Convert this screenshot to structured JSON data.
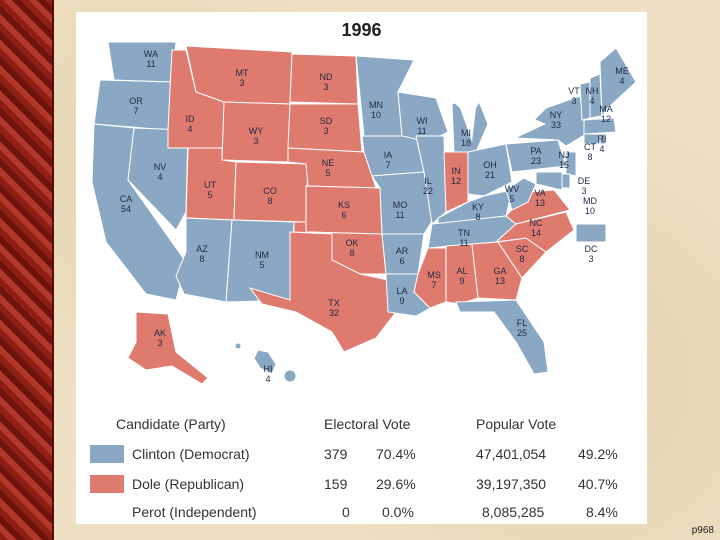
{
  "page_number": "p968",
  "map": {
    "title": "1996",
    "colors": {
      "democrat": "#8aa7c4",
      "republican": "#df7a6e"
    },
    "states": [
      {
        "abbr": "WA",
        "votes": "11",
        "party": "dem"
      },
      {
        "abbr": "OR",
        "votes": "7",
        "party": "dem"
      },
      {
        "abbr": "CA",
        "votes": "54",
        "party": "dem"
      },
      {
        "abbr": "NV",
        "votes": "4",
        "party": "dem"
      },
      {
        "abbr": "ID",
        "votes": "4",
        "party": "rep"
      },
      {
        "abbr": "MT",
        "votes": "3",
        "party": "rep"
      },
      {
        "abbr": "WY",
        "votes": "3",
        "party": "rep"
      },
      {
        "abbr": "UT",
        "votes": "5",
        "party": "rep"
      },
      {
        "abbr": "CO",
        "votes": "8",
        "party": "rep"
      },
      {
        "abbr": "AZ",
        "votes": "8",
        "party": "dem"
      },
      {
        "abbr": "NM",
        "votes": "5",
        "party": "dem"
      },
      {
        "abbr": "ND",
        "votes": "3",
        "party": "rep"
      },
      {
        "abbr": "SD",
        "votes": "3",
        "party": "rep"
      },
      {
        "abbr": "NE",
        "votes": "5",
        "party": "rep"
      },
      {
        "abbr": "KS",
        "votes": "6",
        "party": "rep"
      },
      {
        "abbr": "OK",
        "votes": "8",
        "party": "rep"
      },
      {
        "abbr": "TX",
        "votes": "32",
        "party": "rep"
      },
      {
        "abbr": "MN",
        "votes": "10",
        "party": "dem"
      },
      {
        "abbr": "IA",
        "votes": "7",
        "party": "dem"
      },
      {
        "abbr": "MO",
        "votes": "11",
        "party": "dem"
      },
      {
        "abbr": "AR",
        "votes": "6",
        "party": "dem"
      },
      {
        "abbr": "LA",
        "votes": "9",
        "party": "dem"
      },
      {
        "abbr": "WI",
        "votes": "11",
        "party": "dem"
      },
      {
        "abbr": "IL",
        "votes": "22",
        "party": "dem"
      },
      {
        "abbr": "MI",
        "votes": "18",
        "party": "dem"
      },
      {
        "abbr": "IN",
        "votes": "12",
        "party": "rep"
      },
      {
        "abbr": "OH",
        "votes": "21",
        "party": "dem"
      },
      {
        "abbr": "KY",
        "votes": "8",
        "party": "dem"
      },
      {
        "abbr": "TN",
        "votes": "11",
        "party": "dem"
      },
      {
        "abbr": "MS",
        "votes": "7",
        "party": "rep"
      },
      {
        "abbr": "AL",
        "votes": "9",
        "party": "rep"
      },
      {
        "abbr": "GA",
        "votes": "13",
        "party": "rep"
      },
      {
        "abbr": "FL",
        "votes": "25",
        "party": "dem"
      },
      {
        "abbr": "SC",
        "votes": "8",
        "party": "rep"
      },
      {
        "abbr": "NC",
        "votes": "14",
        "party": "rep"
      },
      {
        "abbr": "VA",
        "votes": "13",
        "party": "rep"
      },
      {
        "abbr": "WV",
        "votes": "5",
        "party": "dem"
      },
      {
        "abbr": "PA",
        "votes": "23",
        "party": "dem"
      },
      {
        "abbr": "NY",
        "votes": "33",
        "party": "dem"
      },
      {
        "abbr": "NJ",
        "votes": "15",
        "party": "dem"
      },
      {
        "abbr": "DE",
        "votes": "3",
        "party": "dem"
      },
      {
        "abbr": "MD",
        "votes": "10",
        "party": "dem"
      },
      {
        "abbr": "DC",
        "votes": "3",
        "party": "dem"
      },
      {
        "abbr": "CT",
        "votes": "8",
        "party": "dem"
      },
      {
        "abbr": "RI",
        "votes": "4",
        "party": "dem"
      },
      {
        "abbr": "MA",
        "votes": "12",
        "party": "dem"
      },
      {
        "abbr": "VT",
        "votes": "3",
        "party": "dem"
      },
      {
        "abbr": "NH",
        "votes": "4",
        "party": "dem"
      },
      {
        "abbr": "ME",
        "votes": "4",
        "party": "dem"
      },
      {
        "abbr": "AK",
        "votes": "3",
        "party": "rep"
      },
      {
        "abbr": "HI",
        "votes": "4",
        "party": "dem"
      }
    ]
  },
  "legend": {
    "headers": {
      "candidate": "Candidate (Party)",
      "electoral": "Electoral Vote",
      "popular": "Popular Vote"
    },
    "rows": [
      {
        "candidate": "Clinton (Democrat)",
        "ev": "379",
        "ev_pct": "70.4%",
        "pv": "47,401,054",
        "pv_pct": "49.2%",
        "color": "#8aa7c4"
      },
      {
        "candidate": "Dole (Republican)",
        "ev": "159",
        "ev_pct": "29.6%",
        "pv": "39,197,350",
        "pv_pct": "40.7%",
        "color": "#df7a6e"
      },
      {
        "candidate": "Perot (Independent)",
        "ev": "0",
        "ev_pct": "0.0%",
        "pv": "8,085,285",
        "pv_pct": "8.4%",
        "color": ""
      }
    ]
  }
}
